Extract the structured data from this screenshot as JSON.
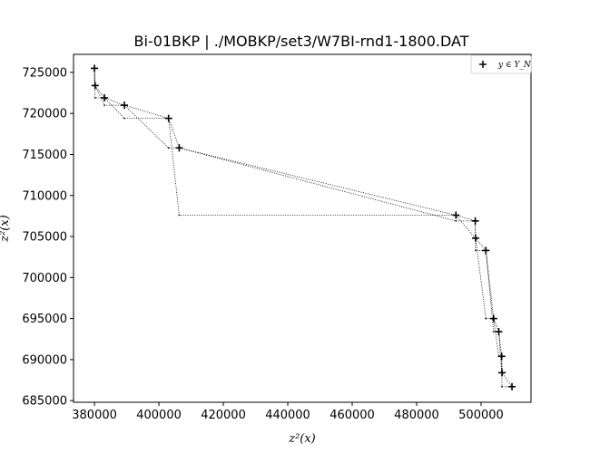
{
  "chart_data": {
    "type": "scatter",
    "title": "Bi-01BKP | ./MOBKP/set3/W7BI-rnd1-1800.DAT",
    "xlabel": "z²(x)",
    "ylabel": "z²(x)",
    "xlim": [
      373500,
      515500
    ],
    "ylim": [
      684800,
      727200
    ],
    "xticks": [
      380000,
      400000,
      420000,
      440000,
      460000,
      480000,
      500000
    ],
    "yticks": [
      685000,
      690000,
      695000,
      700000,
      705000,
      710000,
      715000,
      720000,
      725000
    ],
    "grid": false,
    "legend_position": "top-right",
    "series": [
      {
        "name": "y ∈ Y_N",
        "marker": "plus",
        "points": [
          [
            380000,
            725500
          ],
          [
            380200,
            723400
          ],
          [
            383100,
            721900
          ],
          [
            389300,
            721000
          ],
          [
            403000,
            719400
          ],
          [
            406300,
            715800
          ],
          [
            492200,
            707600
          ],
          [
            498200,
            706900
          ],
          [
            498300,
            704800
          ],
          [
            501500,
            703300
          ],
          [
            503900,
            695000
          ],
          [
            505500,
            693400
          ],
          [
            506400,
            690400
          ],
          [
            506500,
            688400
          ],
          [
            509600,
            686700
          ]
        ]
      }
    ]
  }
}
